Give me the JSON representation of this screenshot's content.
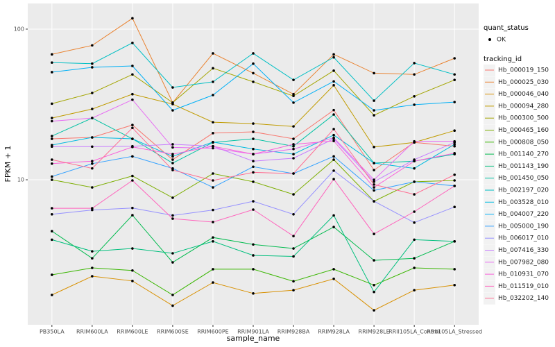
{
  "chart_data": {
    "type": "line",
    "x_label": "sample_name",
    "y_label": "FPKM + 1",
    "log_y": true,
    "grid": true,
    "categories": [
      "PB350LA",
      "RRIM600LA",
      "RRIM600LE",
      "RRIM600SE",
      "RRIM600PE",
      "RRIM901LA",
      "RRIM928BA",
      "RRIM928LA",
      "RRIM928LE",
      "RRII105LA_Control",
      "RRII105LA_Stressed"
    ],
    "ylim": [
      1.09,
      148
    ],
    "yticks": [
      10,
      100
    ],
    "point_legend": {
      "title": "quant_status",
      "label": "OK"
    },
    "legend_title": "tracking_id",
    "series": [
      {
        "name": "Hb_000019_150",
        "color": "#F8766D",
        "values": [
          18.7,
          19.1,
          23.1,
          13.6,
          20.4,
          20.8,
          18.7,
          29,
          11.6,
          17.7,
          16.7
        ]
      },
      {
        "name": "Hb_000025_030",
        "color": "#EA8331",
        "values": [
          68,
          78,
          118,
          32.5,
          69,
          51,
          37,
          68,
          51,
          50,
          64
        ]
      },
      {
        "name": "Hb_000046_040",
        "color": "#D89000",
        "values": [
          1.72,
          2.29,
          2.13,
          1.46,
          2.08,
          1.76,
          1.85,
          2.2,
          1.36,
          1.85,
          2.0
        ]
      },
      {
        "name": "Hb_000094_280",
        "color": "#C09B00",
        "values": [
          25.7,
          29.5,
          37,
          31.8,
          24.1,
          23.6,
          22.6,
          42.4,
          16.5,
          17.7,
          21.2
        ]
      },
      {
        "name": "Hb_000300_500",
        "color": "#A3A500",
        "values": [
          32,
          37.7,
          50,
          32.5,
          55,
          44.7,
          36,
          53,
          26.8,
          35.8,
          46
        ]
      },
      {
        "name": "Hb_000465_160",
        "color": "#7CAE00",
        "values": [
          10,
          8.9,
          10.6,
          7.6,
          11.0,
          9.7,
          8.0,
          13.6,
          7.2,
          9.7,
          9.9
        ]
      },
      {
        "name": "Hb_000808_050",
        "color": "#39B600",
        "values": [
          2.34,
          2.6,
          2.5,
          1.72,
          2.55,
          2.55,
          2.12,
          2.55,
          2.0,
          2.6,
          2.55
        ]
      },
      {
        "name": "Hb_001140_270",
        "color": "#00BB4E",
        "values": [
          4.56,
          3.01,
          5.82,
          2.83,
          4.14,
          3.72,
          3.5,
          4.86,
          2.92,
          3.01,
          3.9
        ]
      },
      {
        "name": "Hb_001143_190",
        "color": "#00BF7D",
        "values": [
          4.0,
          3.35,
          3.5,
          3.25,
          3.9,
          3.15,
          3.1,
          5.8,
          1.8,
          4.0,
          3.9
        ]
      },
      {
        "name": "Hb_001450_050",
        "color": "#00C1A3",
        "values": [
          19.5,
          25.7,
          18.7,
          12.9,
          17.7,
          18.7,
          16.7,
          27.1,
          12.9,
          13.3,
          14.8
        ]
      },
      {
        "name": "Hb_002197_020",
        "color": "#00BFC4",
        "values": [
          60,
          59,
          81,
          41,
          44.7,
          69,
          46,
          65,
          33.5,
          59.5,
          50
        ]
      },
      {
        "name": "Hb_003528_010",
        "color": "#00BAE0",
        "values": [
          17.0,
          19.1,
          18.7,
          14.3,
          17.8,
          16.0,
          14.8,
          19.8,
          12.9,
          11.9,
          17.2
        ]
      },
      {
        "name": "Hb_004007_220",
        "color": "#00B0F6",
        "values": [
          51.8,
          55.8,
          57,
          28.9,
          36.5,
          59,
          32.5,
          45,
          28.9,
          31.5,
          32.8
        ]
      },
      {
        "name": "Hb_005000_190",
        "color": "#35A2FF",
        "values": [
          10.5,
          12.8,
          14.3,
          11.9,
          8.9,
          12.2,
          11.0,
          14.3,
          8.5,
          9.7,
          9.1
        ]
      },
      {
        "name": "Hb_006017_010",
        "color": "#9590FF",
        "values": [
          5.9,
          6.3,
          6.5,
          5.8,
          6.3,
          7.2,
          5.9,
          11.5,
          7.2,
          5.2,
          6.6
        ]
      },
      {
        "name": "Hb_007416_330",
        "color": "#C77CFF",
        "values": [
          16.6,
          16.6,
          16.7,
          17.2,
          16.7,
          13.3,
          13.9,
          18.7,
          9.7,
          13.6,
          17.7
        ]
      },
      {
        "name": "Hb_007982_080",
        "color": "#E76BF3",
        "values": [
          24.5,
          25.7,
          34,
          16.4,
          16.2,
          14.8,
          16.0,
          19.0,
          10.0,
          18.0,
          18.0
        ]
      },
      {
        "name": "Hb_010931_070",
        "color": "#FA62DB",
        "values": [
          12.8,
          13.3,
          16.5,
          14.8,
          16.7,
          14.8,
          17.2,
          18.1,
          8.9,
          13.3,
          15.0
        ]
      },
      {
        "name": "Hb_011519_010",
        "color": "#FF62BC",
        "values": [
          6.47,
          6.47,
          9.9,
          5.52,
          5.24,
          6.34,
          4.23,
          10.1,
          4.37,
          6.14,
          9.1
        ]
      },
      {
        "name": "Hb_032202_140",
        "color": "#FF6C91",
        "values": [
          13.6,
          11.9,
          22.1,
          11.6,
          9.9,
          11.2,
          11.0,
          21.7,
          9.3,
          8.0,
          10.8
        ]
      }
    ]
  }
}
